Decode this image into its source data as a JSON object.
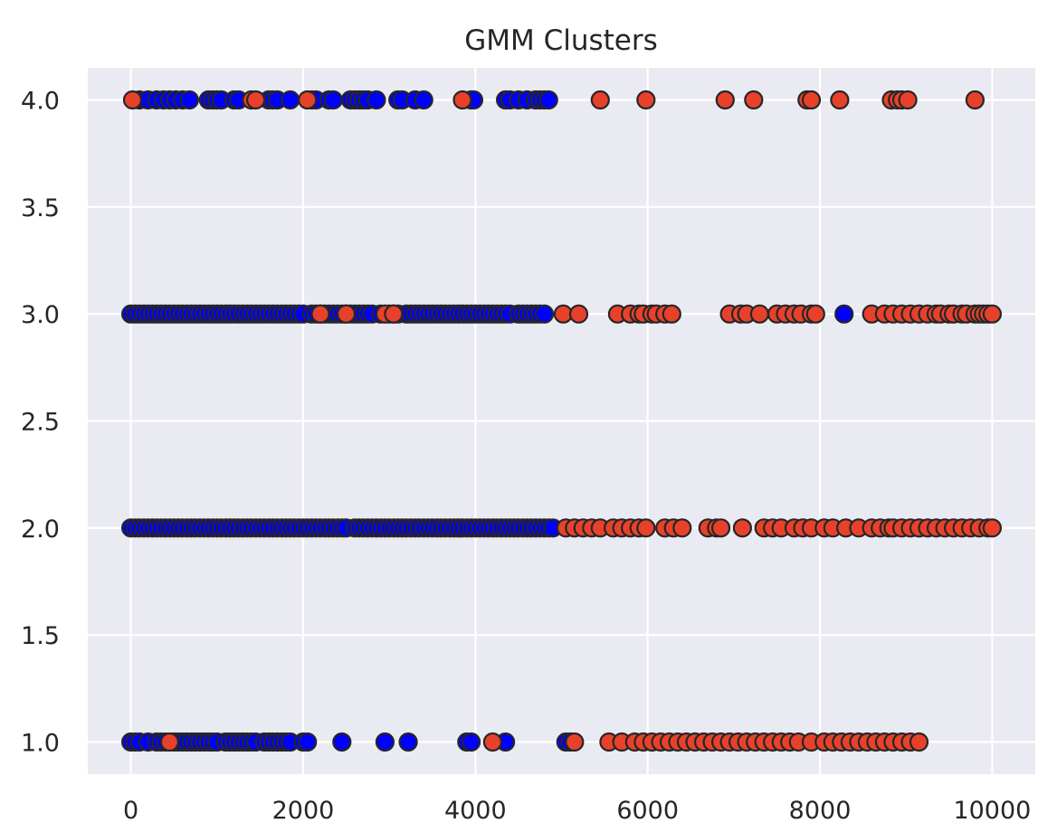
{
  "chart_data": {
    "type": "scatter",
    "title": "GMM Clusters",
    "xlabel": "",
    "ylabel": "",
    "xlim": [
      -500,
      10500
    ],
    "ylim": [
      0.85,
      4.15
    ],
    "xticks": [
      0,
      2000,
      4000,
      6000,
      8000,
      10000
    ],
    "xtick_labels": [
      "0",
      "2000",
      "4000",
      "6000",
      "8000",
      "10000"
    ],
    "yticks": [
      1.0,
      1.5,
      2.0,
      2.5,
      3.0,
      3.5,
      4.0
    ],
    "ytick_labels": [
      "1.0",
      "1.5",
      "2.0",
      "2.5",
      "3.0",
      "3.5",
      "4.0"
    ],
    "grid": true,
    "legend": "none",
    "background": "#EAEAF2",
    "series": [
      {
        "color": "#0000FF",
        "points": [
          {
            "y": 4.0,
            "x": [
              100,
              200,
              300,
              380,
              450,
              520,
              600,
              680,
              900,
              950,
              1000,
              1050,
              1200,
              1250,
              1600,
              1650,
              1700,
              1850,
              2100,
              2150,
              2300,
              2350,
              2550,
              2600,
              2650,
              2700,
              2750,
              2850,
              3100,
              3150,
              3300,
              3400,
              3950,
              3980,
              4350,
              4400,
              4500,
              4600,
              4700,
              4750,
              4800,
              4850
            ]
          },
          {
            "y": 3.0,
            "x": [
              0,
              50,
              100,
              150,
              200,
              250,
              300,
              350,
              400,
              450,
              500,
              550,
              600,
              650,
              700,
              750,
              800,
              850,
              900,
              950,
              1000,
              1050,
              1100,
              1150,
              1200,
              1250,
              1300,
              1350,
              1400,
              1450,
              1500,
              1550,
              1600,
              1650,
              1700,
              1750,
              1800,
              1850,
              1900,
              1950,
              2000,
              2100,
              2150,
              2200,
              2250,
              2300,
              2350,
              2400,
              2450,
              2500,
              2550,
              2600,
              2650,
              2700,
              2750,
              2800,
              2900,
              3000,
              3050,
              3100,
              3200,
              3250,
              3300,
              3350,
              3400,
              3450,
              3500,
              3550,
              3600,
              3650,
              3700,
              3750,
              3800,
              3850,
              3900,
              3950,
              4000,
              4050,
              4100,
              4150,
              4200,
              4250,
              4300,
              4350,
              4400,
              4500,
              4550,
              4600,
              4650,
              4700,
              4750,
              4800,
              8280
            ]
          },
          {
            "y": 2.0,
            "x": [
              0,
              50,
              100,
              150,
              200,
              250,
              300,
              350,
              400,
              450,
              500,
              550,
              600,
              650,
              700,
              750,
              800,
              850,
              900,
              950,
              1000,
              1050,
              1100,
              1150,
              1200,
              1250,
              1300,
              1350,
              1400,
              1450,
              1500,
              1550,
              1600,
              1650,
              1700,
              1750,
              1800,
              1850,
              1900,
              1950,
              2000,
              2050,
              2100,
              2150,
              2200,
              2250,
              2300,
              2350,
              2400,
              2450,
              2500,
              2600,
              2650,
              2700,
              2750,
              2800,
              2850,
              2900,
              2950,
              3000,
              3050,
              3100,
              3150,
              3200,
              3250,
              3300,
              3350,
              3400,
              3450,
              3500,
              3550,
              3600,
              3650,
              3700,
              3750,
              3800,
              3850,
              3900,
              3950,
              4000,
              4050,
              4100,
              4150,
              4200,
              4250,
              4300,
              4350,
              4400,
              4450,
              4500,
              4550,
              4600,
              4650,
              4700,
              4750,
              4800,
              4850,
              4900
            ]
          },
          {
            "y": 1.0,
            "x": [
              0,
              50,
              100,
              200,
              300,
              350,
              400,
              500,
              550,
              600,
              650,
              700,
              750,
              800,
              850,
              900,
              950,
              1000,
              1100,
              1150,
              1200,
              1250,
              1300,
              1350,
              1400,
              1450,
              1550,
              1600,
              1650,
              1700,
              1750,
              1800,
              1850,
              2000,
              2050,
              2450,
              2950,
              3220,
              3900,
              3950,
              4350,
              5050,
              5100
            ]
          }
        ]
      },
      {
        "color": "#E8412B",
        "points": [
          {
            "y": 4.0,
            "x": [
              20,
              1400,
              1450,
              2050,
              3850,
              5450,
              5980,
              6900,
              7230,
              7850,
              7900,
              8230,
              8830,
              8900,
              8950,
              9020,
              9800
            ]
          },
          {
            "y": 3.0,
            "x": [
              2200,
              2500,
              2950,
              3050,
              5020,
              5200,
              5650,
              5800,
              5900,
              5950,
              6050,
              6100,
              6200,
              6280,
              6950,
              7080,
              7150,
              7300,
              7500,
              7600,
              7700,
              7780,
              7900,
              7950,
              8600,
              8750,
              8850,
              8950,
              9050,
              9150,
              9250,
              9350,
              9400,
              9500,
              9550,
              9650,
              9700,
              9800,
              9850,
              9900,
              9950,
              10000
            ]
          },
          {
            "y": 2.0,
            "x": [
              5050,
              5150,
              5250,
              5350,
              5450,
              5600,
              5700,
              5800,
              5900,
              5980,
              6200,
              6300,
              6400,
              6700,
              6800,
              6850,
              7100,
              7350,
              7450,
              7550,
              7700,
              7800,
              7900,
              8050,
              8150,
              8300,
              8450,
              8600,
              8700,
              8800,
              8850,
              8950,
              9050,
              9150,
              9250,
              9350,
              9450,
              9550,
              9650,
              9750,
              9850,
              9950,
              10000
            ]
          },
          {
            "y": 1.0,
            "x": [
              450,
              4200,
              5150,
              5550,
              5700,
              5850,
              5950,
              6050,
              6150,
              6250,
              6350,
              6450,
              6550,
              6650,
              6750,
              6850,
              6950,
              7050,
              7150,
              7250,
              7350,
              7450,
              7550,
              7650,
              7750,
              7900,
              8050,
              8150,
              8250,
              8350,
              8450,
              8550,
              8650,
              8750,
              8850,
              8950,
              9050,
              9150
            ]
          }
        ]
      }
    ]
  }
}
